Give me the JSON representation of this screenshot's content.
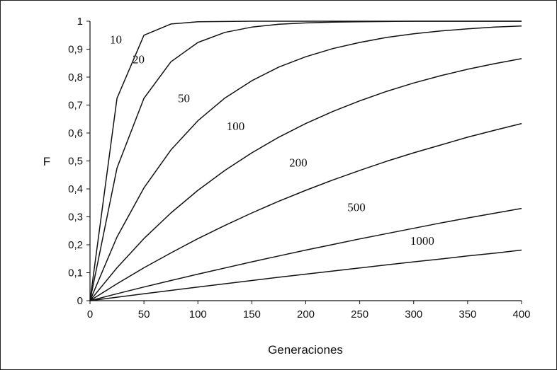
{
  "chart_data": {
    "type": "line",
    "title": "",
    "xlabel": "Generaciones",
    "ylabel": "F",
    "xlim": [
      0,
      400
    ],
    "ylim": [
      0,
      1
    ],
    "grid": false,
    "legend": "none",
    "line_color": "#111111",
    "x_ticks": [
      "0",
      "50",
      "100",
      "150",
      "200",
      "250",
      "300",
      "350",
      "400"
    ],
    "y_ticks": [
      "0",
      "0,1",
      "0,2",
      "0,3",
      "0,4",
      "0,5",
      "0,6",
      "0,7",
      "0,8",
      "0,9",
      "1"
    ],
    "x": [
      0,
      25,
      50,
      75,
      100,
      125,
      150,
      175,
      200,
      225,
      250,
      275,
      300,
      325,
      350,
      375,
      400
    ],
    "series": [
      {
        "name": "10",
        "values": [
          0,
          0.7244,
          0.95,
          0.99,
          0.998,
          0.999,
          1,
          1,
          1,
          1,
          1,
          1,
          1,
          1,
          1,
          1,
          1
        ]
      },
      {
        "name": "20",
        "values": [
          0,
          0.4747,
          0.7241,
          0.855,
          0.924,
          0.96,
          0.979,
          0.989,
          0.994,
          0.997,
          0.998,
          0.999,
          1,
          1,
          1,
          1,
          1
        ]
      },
      {
        "name": "50",
        "values": [
          0,
          0.2278,
          0.4035,
          0.5394,
          0.644,
          0.725,
          0.787,
          0.836,
          0.873,
          0.902,
          0.924,
          0.942,
          0.955,
          0.965,
          0.973,
          0.979,
          0.983
        ]
      },
      {
        "name": "100",
        "values": [
          0,
          0.1178,
          0.2222,
          0.314,
          0.395,
          0.466,
          0.529,
          0.585,
          0.634,
          0.677,
          0.715,
          0.749,
          0.779,
          0.805,
          0.828,
          0.848,
          0.866
        ]
      },
      {
        "name": "200",
        "values": [
          0,
          0.0606,
          0.1178,
          0.171,
          0.222,
          0.269,
          0.314,
          0.356,
          0.395,
          0.432,
          0.466,
          0.499,
          0.529,
          0.557,
          0.585,
          0.61,
          0.634
        ]
      },
      {
        "name": "500",
        "values": [
          0,
          0.0247,
          0.0488,
          0.0722,
          0.095,
          0.117,
          0.139,
          0.16,
          0.181,
          0.201,
          0.221,
          0.24,
          0.259,
          0.278,
          0.296,
          0.313,
          0.33
        ]
      },
      {
        "name": "1000",
        "values": [
          0,
          0.0124,
          0.0247,
          0.0368,
          0.0488,
          0.0606,
          0.0722,
          0.0837,
          0.095,
          0.106,
          0.117,
          0.128,
          0.139,
          0.149,
          0.16,
          0.17,
          0.181
        ]
      }
    ],
    "curve_labels": [
      {
        "text": "10",
        "x": 24,
        "y": 0.92
      },
      {
        "text": "20",
        "x": 45,
        "y": 0.85
      },
      {
        "text": "50",
        "x": 87,
        "y": 0.71
      },
      {
        "text": "100",
        "x": 135,
        "y": 0.61
      },
      {
        "text": "200",
        "x": 193,
        "y": 0.48
      },
      {
        "text": "500",
        "x": 247,
        "y": 0.32
      },
      {
        "text": "1000",
        "x": 308,
        "y": 0.2
      }
    ]
  }
}
